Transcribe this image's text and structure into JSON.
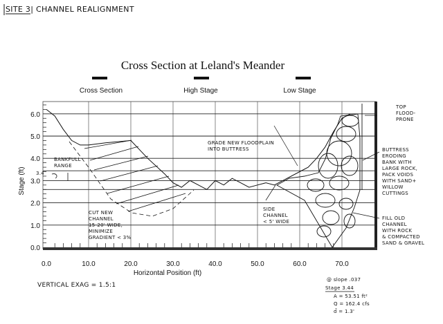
{
  "header": {
    "site_title": "SITE 3| CHANNEL REALIGNMENT"
  },
  "chart_data": {
    "type": "line",
    "title": "Cross Section at Leland's Meander",
    "xlabel": "Horizontal Position (ft)",
    "ylabel": "Stage (ft)",
    "xlim": [
      0,
      75
    ],
    "ylim": [
      0,
      6.5
    ],
    "grid": true,
    "x_ticks": [
      "0.0",
      "10.0",
      "20.0",
      "30.0",
      "40.0",
      "50.0",
      "60.0",
      "70.0"
    ],
    "y_ticks": [
      "0.0",
      "1.0",
      "2.0",
      "3.0",
      "4.0",
      "5.0",
      "6.0"
    ],
    "legend": {
      "placement": "top",
      "entries": [
        "Cross Section",
        "High Stage",
        "Low Stage"
      ]
    },
    "series": [
      {
        "name": "Cross Section",
        "points": [
          [
            0,
            6.2
          ],
          [
            2,
            5.9
          ],
          [
            4,
            5.3
          ],
          [
            6,
            4.8
          ],
          [
            8,
            4.6
          ],
          [
            10,
            4.6
          ],
          [
            14,
            4.7
          ],
          [
            20,
            4.8
          ],
          [
            24,
            4.0
          ],
          [
            28,
            3.3
          ],
          [
            30,
            2.9
          ],
          [
            32,
            2.7
          ],
          [
            34,
            3.0
          ],
          [
            36,
            2.8
          ],
          [
            38,
            2.6
          ],
          [
            40,
            3.0
          ],
          [
            42,
            2.8
          ],
          [
            44,
            3.1
          ],
          [
            46,
            2.9
          ],
          [
            48,
            2.7
          ],
          [
            50,
            2.8
          ],
          [
            52,
            2.9
          ],
          [
            54,
            2.8
          ],
          [
            56,
            3.0
          ],
          [
            58,
            3.2
          ],
          [
            60,
            3.4
          ],
          [
            62,
            3.6
          ],
          [
            64,
            4.0
          ],
          [
            66,
            4.5
          ],
          [
            68,
            5.2
          ],
          [
            70,
            5.8
          ],
          [
            72,
            6.0
          ]
        ]
      },
      {
        "name": "High Stage",
        "points": [
          [
            10,
            3.44
          ],
          [
            74,
            3.44
          ]
        ]
      },
      {
        "name": "Low Stage",
        "points": [
          [
            10,
            2.6
          ],
          [
            74,
            2.6
          ]
        ]
      }
    ],
    "horizontal_lines": [
      6.0,
      5.0,
      4.0,
      3.44,
      3.0,
      2.6,
      2.0,
      1.0
    ],
    "annotations": {
      "bankfull": [
        "BANKFULL",
        "RANGE"
      ],
      "stage_mark": "3.4",
      "cut_channel": [
        "CUT NEW",
        "CHANNEL",
        "15-20' WIDE,",
        "MINIMIZE",
        "GRADIENT < 3%"
      ],
      "grade": [
        "GRADE NEW FLOODPLAIN",
        "INTO BUTTRESS"
      ],
      "side_channel": [
        "SIDE",
        "CHANNEL",
        "< 5' WIDE"
      ],
      "top_floodprone": [
        "TOP",
        "FLOOD-",
        "PRONE"
      ],
      "buttress": [
        "BUTTRESS",
        "ERODING",
        "BANK WITH",
        "LARGE ROCK,",
        "PACK VOIDS",
        "WITH SAND+",
        "WILLOW",
        "CUTTINGS"
      ],
      "fill": [
        "FILL OLD",
        "CHANNEL",
        "WITH ROCK",
        "& COMPACTED",
        "SAND & GRAVEL"
      ]
    }
  },
  "notes": {
    "vertical_exag": "VERTICAL EXAG = 1.5:1",
    "slope": "@ slope .037",
    "stage": "Stage 3.44",
    "area": "A = 53.51 ft²",
    "discharge": "Q = 162.4 cfs",
    "depth": "d̄ = 1.3'"
  },
  "colors": {
    "ink": "#111111",
    "paper": "#ffffff"
  }
}
